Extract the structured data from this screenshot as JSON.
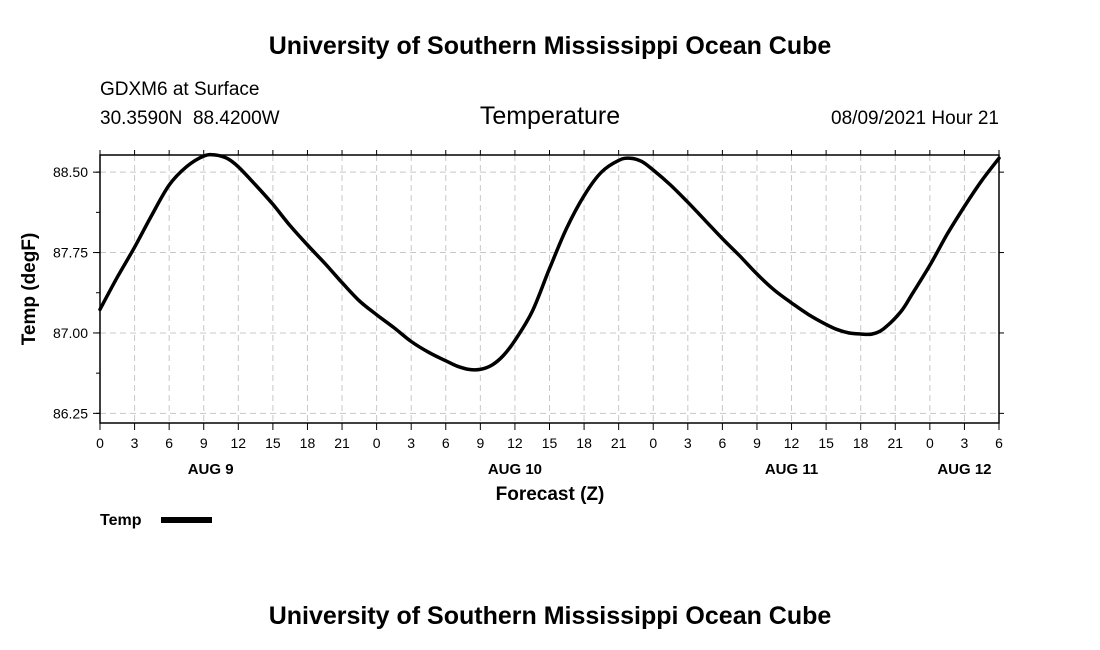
{
  "page": {
    "top_title": "University of Southern Mississippi Ocean Cube",
    "bottom_title": "University of Southern Mississippi Ocean Cube",
    "station": "GDXM6 at Surface",
    "location": "30.3590N  88.4200W",
    "datetime": "08/09/2021 Hour 21"
  },
  "chart_data": {
    "type": "line",
    "title": "Temperature",
    "xlabel": "Forecast (Z)",
    "ylabel": "Temp (degF)",
    "xlim": [
      0,
      78
    ],
    "ylim": [
      86.16,
      88.66
    ],
    "yticks": [
      "88.50",
      "87.75",
      "87.00",
      "86.25"
    ],
    "ytick_values": [
      88.5,
      87.75,
      87.0,
      86.25
    ],
    "xtick_hours": [
      0,
      3,
      6,
      9,
      12,
      15,
      18,
      21,
      24,
      27,
      30,
      33,
      36,
      39,
      42,
      45,
      48,
      51,
      54,
      57,
      60,
      63,
      66,
      69,
      72,
      75,
      78
    ],
    "xtick_labels": [
      "0",
      "3",
      "6",
      "9",
      "12",
      "15",
      "18",
      "21",
      "0",
      "3",
      "6",
      "9",
      "12",
      "15",
      "18",
      "21",
      "0",
      "3",
      "6",
      "9",
      "12",
      "15",
      "18",
      "21",
      "0",
      "3",
      "6"
    ],
    "date_labels": [
      {
        "text": "AUG 9",
        "hour": 9.6
      },
      {
        "text": "AUG 10",
        "hour": 36
      },
      {
        "text": "AUG 11",
        "hour": 60
      },
      {
        "text": "AUG 12",
        "hour": 75
      }
    ],
    "grid": true,
    "legend": {
      "label": "Temp",
      "position": "bottom-left"
    },
    "series": [
      {
        "name": "Temp",
        "color": "#000000",
        "x": [
          0,
          1.5,
          3,
          4.5,
          6,
          7.5,
          9,
          10,
          11,
          12,
          13.5,
          15,
          16.5,
          18,
          19.5,
          21,
          22.5,
          24,
          25.5,
          27,
          28.5,
          30,
          31,
          32,
          33,
          34,
          35,
          36,
          37.5,
          39,
          40.5,
          42,
          43.5,
          45,
          46,
          47,
          48,
          49.5,
          51,
          52.5,
          54,
          55.5,
          57,
          58.5,
          60,
          61.5,
          63,
          64,
          65,
          66,
          67,
          68,
          69.5,
          70.5,
          72,
          73.5,
          75,
          76.5,
          78
        ],
        "y": [
          87.22,
          87.52,
          87.8,
          88.1,
          88.38,
          88.55,
          88.65,
          88.66,
          88.63,
          88.55,
          88.38,
          88.2,
          88.0,
          87.82,
          87.65,
          87.47,
          87.3,
          87.17,
          87.05,
          86.92,
          86.82,
          86.74,
          86.69,
          86.66,
          86.66,
          86.7,
          86.79,
          86.93,
          87.2,
          87.6,
          87.98,
          88.28,
          88.5,
          88.61,
          88.63,
          88.6,
          88.52,
          88.38,
          88.22,
          88.05,
          87.88,
          87.72,
          87.55,
          87.4,
          87.28,
          87.17,
          87.08,
          87.03,
          87.0,
          86.99,
          86.99,
          87.04,
          87.2,
          87.37,
          87.63,
          87.92,
          88.18,
          88.42,
          88.63
        ]
      }
    ]
  }
}
